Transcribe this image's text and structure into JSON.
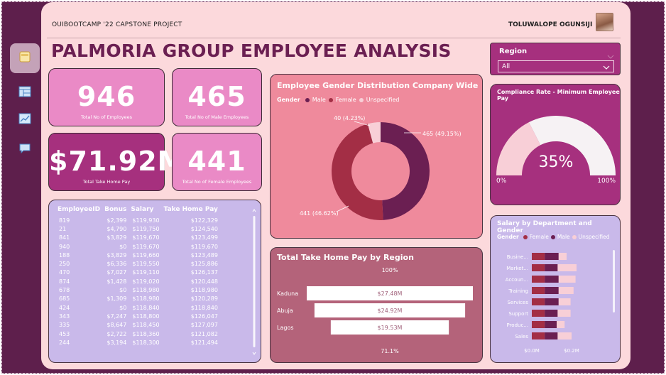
{
  "header": {
    "project": "OUIBOOTCAMP '22 CAPSTONE PROJECT",
    "user": "TOLUWALOPE OGUNSIJI",
    "title": "PALMORIA GROUP EMPLOYEE ANALYSIS"
  },
  "nav": {
    "icons": [
      "home-icon",
      "table-icon",
      "chart-icon",
      "chat-icon"
    ]
  },
  "region_filter": {
    "label": "Region",
    "selected": "All"
  },
  "kpis": {
    "total_employees": {
      "value": "946",
      "label": "Total No of Employees"
    },
    "male_employees": {
      "value": "465",
      "label": "Total No of Male Employees"
    },
    "take_home": {
      "value": "$71.92M",
      "label": "Total Take Home Pay"
    },
    "female_employees": {
      "value": "441",
      "label": "Total No of Female Employees"
    }
  },
  "table": {
    "columns": [
      "EmployeeID",
      "Bonus",
      "Salary",
      "Take Home Pay"
    ],
    "rows": [
      [
        "819",
        "$2,399",
        "$119,930",
        "$122,329"
      ],
      [
        "21",
        "$4,790",
        "$119,750",
        "$124,540"
      ],
      [
        "841",
        "$3,829",
        "$119,670",
        "$123,499"
      ],
      [
        "940",
        "$0",
        "$119,670",
        "$119,670"
      ],
      [
        "188",
        "$3,829",
        "$119,660",
        "$123,489"
      ],
      [
        "250",
        "$6,336",
        "$119,550",
        "$125,886"
      ],
      [
        "470",
        "$7,027",
        "$119,110",
        "$126,137"
      ],
      [
        "874",
        "$1,428",
        "$119,020",
        "$120,448"
      ],
      [
        "678",
        "$0",
        "$118,980",
        "$118,980"
      ],
      [
        "685",
        "$1,309",
        "$118,980",
        "$120,289"
      ],
      [
        "424",
        "$0",
        "$118,840",
        "$118,840"
      ],
      [
        "343",
        "$7,247",
        "$118,800",
        "$126,047"
      ],
      [
        "335",
        "$8,647",
        "$118,450",
        "$127,097"
      ],
      [
        "453",
        "$2,722",
        "$118,360",
        "$121,082"
      ],
      [
        "244",
        "$3,194",
        "$118,300",
        "$121,494"
      ]
    ]
  },
  "chart_data": [
    {
      "type": "pie",
      "title": "Employee Gender Distribution Company Wide",
      "legend_title": "Gender",
      "categories": [
        "Male",
        "Female",
        "Unspecified"
      ],
      "values": [
        465,
        441,
        40
      ],
      "labels": [
        "465 (49.15%)",
        "441 (46.62%)",
        "40 (4.23%)"
      ],
      "colors": [
        "#6b1f52",
        "#a32e45",
        "#f8cfd7"
      ]
    },
    {
      "type": "bar",
      "title": "Total Take Home Pay by Region",
      "categories": [
        "Kaduna",
        "Abuja",
        "Lagos"
      ],
      "values": [
        27.48,
        24.92,
        19.53
      ],
      "value_labels": [
        "$27.48M",
        "$24.92M",
        "$19.53M"
      ],
      "top_label": "100%",
      "bottom_label": "71.1%"
    },
    {
      "type": "gauge",
      "title": "Compliance Rate - Minimum Employee Pay",
      "value": 35,
      "value_label": "35%",
      "min_label": "0%",
      "max_label": "100%"
    },
    {
      "type": "bar",
      "title": "Salary by Department and Gender",
      "legend_title": "Gender",
      "categories": [
        "Busine...",
        "Market...",
        "Accoun...",
        "Training",
        "Services",
        "Support",
        "Produc...",
        "Sales"
      ],
      "series": [
        {
          "name": "Female",
          "values": [
            0.065,
            0.065,
            0.065,
            0.065,
            0.065,
            0.065,
            0.065,
            0.065
          ],
          "color": "#a32e45"
        },
        {
          "name": "Male",
          "values": [
            0.07,
            0.065,
            0.07,
            0.07,
            0.07,
            0.065,
            0.06,
            0.065
          ],
          "color": "#6b1f52"
        },
        {
          "name": "Unspecified",
          "values": [
            0.04,
            0.095,
            0.085,
            0.075,
            0.06,
            0.065,
            0.04,
            0.07
          ],
          "color": "#f8cfd7"
        }
      ],
      "ticks": [
        "$0.0M",
        "$0.2M"
      ],
      "xlim": [
        0,
        0.25
      ]
    }
  ],
  "colors": {
    "accent": "#a6307e",
    "light": "#ea8ac6",
    "background": "#fcd9dc",
    "frame": "#5e1f4c"
  }
}
